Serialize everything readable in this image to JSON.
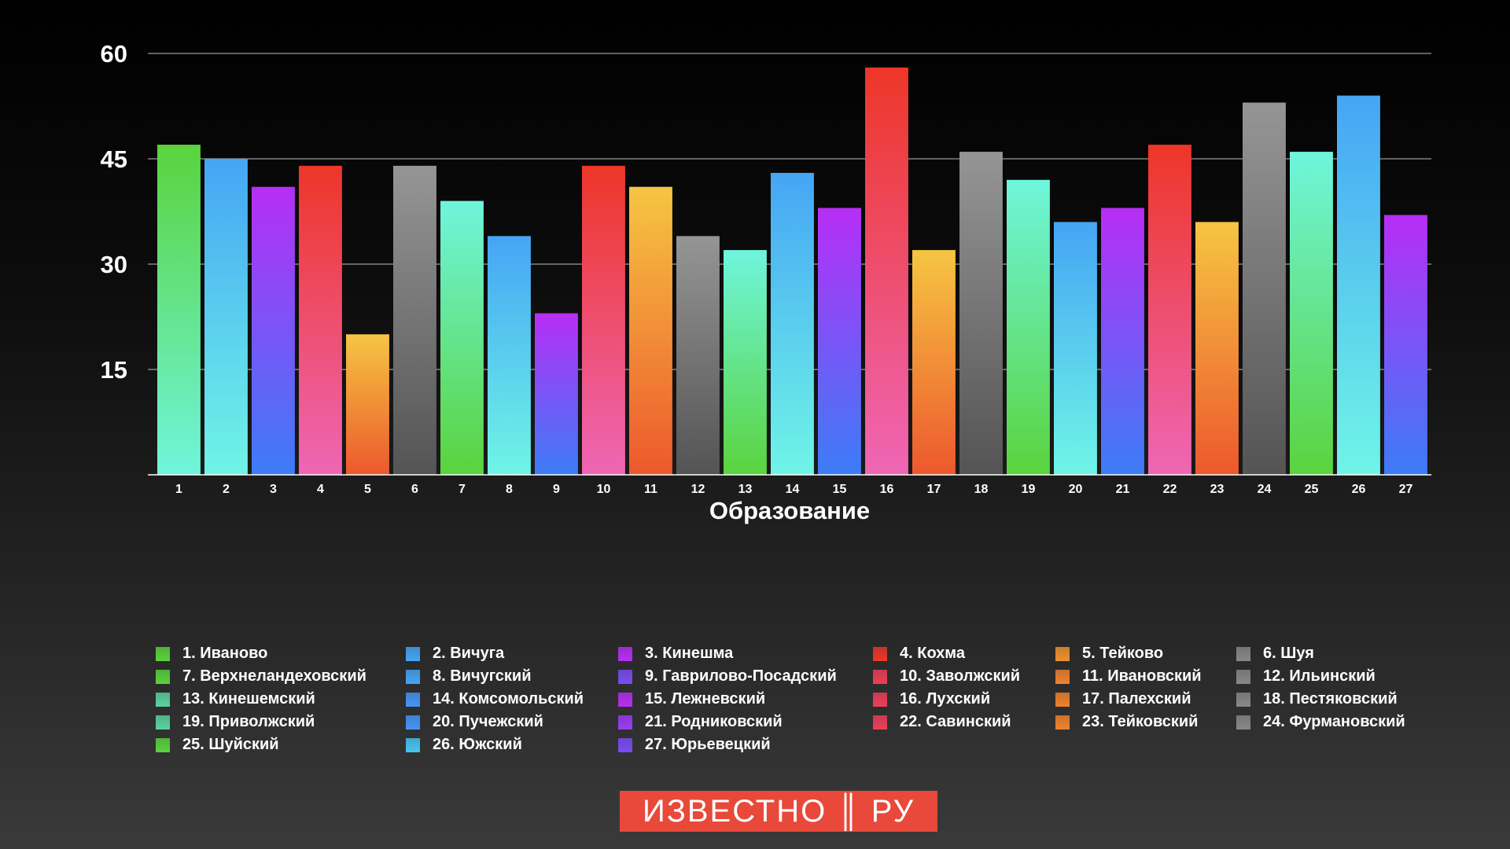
{
  "chart_data": {
    "type": "bar",
    "title": "",
    "xlabel": "Образование",
    "ylabel": "",
    "ylim": [
      0,
      60
    ],
    "yticks": [
      15,
      30,
      45,
      60
    ],
    "grid": true,
    "legend_position": "bottom",
    "categories": [
      "1",
      "2",
      "3",
      "4",
      "5",
      "6",
      "7",
      "8",
      "9",
      "10",
      "11",
      "12",
      "13",
      "14",
      "15",
      "16",
      "17",
      "18",
      "19",
      "20",
      "21",
      "22",
      "23",
      "24",
      "25",
      "26",
      "27"
    ],
    "values": [
      47,
      45,
      41,
      44,
      20,
      44,
      39,
      34,
      23,
      44,
      41,
      34,
      32,
      43,
      38,
      58,
      32,
      46,
      42,
      36,
      38,
      47,
      36,
      53,
      46,
      54,
      37
    ],
    "bar_colors": [
      [
        "#6ff5dc",
        "#5ad33d"
      ],
      [
        "#6ff5e6",
        "#45a5f5"
      ],
      [
        "#3c7cf7",
        "#b72ef5"
      ],
      [
        "#ef66b5",
        "#ed3628"
      ],
      [
        "#ed582d",
        "#f6c542"
      ],
      [
        "#545454",
        "#959595"
      ],
      [
        "#5ad33d",
        "#6ff5dc"
      ],
      [
        "#6ff5e6",
        "#45a5f5"
      ],
      [
        "#3c7cf7",
        "#b72ef5"
      ],
      [
        "#ef66b5",
        "#ed3628"
      ],
      [
        "#ed582d",
        "#f6c542"
      ],
      [
        "#545454",
        "#959595"
      ],
      [
        "#5ad33d",
        "#6ff5dc"
      ],
      [
        "#6ff5e6",
        "#45a5f5"
      ],
      [
        "#3c7cf7",
        "#b72ef5"
      ],
      [
        "#ef66b5",
        "#ed3628"
      ],
      [
        "#ed582d",
        "#f6c542"
      ],
      [
        "#545454",
        "#959595"
      ],
      [
        "#5ad33d",
        "#6ff5dc"
      ],
      [
        "#6ff5e6",
        "#45a5f5"
      ],
      [
        "#3c7cf7",
        "#b72ef5"
      ],
      [
        "#ef66b5",
        "#ed3628"
      ],
      [
        "#ed582d",
        "#f6c542"
      ],
      [
        "#545454",
        "#959595"
      ],
      [
        "#5ad33d",
        "#6ff5dc"
      ],
      [
        "#6ff5e6",
        "#45a5f5"
      ],
      [
        "#3c7cf7",
        "#b72ef5"
      ]
    ],
    "legend": [
      {
        "label": "1. Иваново",
        "color": "#5ad33d"
      },
      {
        "label": "2. Вичуга",
        "color": "#45a5f5"
      },
      {
        "label": "3. Кинешма",
        "color": "#b72ef5"
      },
      {
        "label": "4. Кохма",
        "color": "#ed3628"
      },
      {
        "label": "5. Тейково",
        "color": "#f0902e"
      },
      {
        "label": "6. Шуя",
        "color": "#888888"
      },
      {
        "label": "7. Верхнеландеховский",
        "color": "#5ad33d"
      },
      {
        "label": "8. Вичугский",
        "color": "#45a5f5"
      },
      {
        "label": "9. Гаврилово-Посадский",
        "color": "#7a4cf5"
      },
      {
        "label": "10. Заволжский",
        "color": "#ed3f58"
      },
      {
        "label": "11. Ивановский",
        "color": "#f0822e"
      },
      {
        "label": "12. Ильинский",
        "color": "#888888"
      },
      {
        "label": "13. Кинешемский",
        "color": "#5ad3a0"
      },
      {
        "label": "14. Комсомольский",
        "color": "#4595f5"
      },
      {
        "label": "15. Лежневский",
        "color": "#b72ef5"
      },
      {
        "label": "16. Лухский",
        "color": "#ed3f58"
      },
      {
        "label": "17. Палехский",
        "color": "#f0822e"
      },
      {
        "label": "18. Пестяковский",
        "color": "#888888"
      },
      {
        "label": "19. Приволжский",
        "color": "#5ad3a0"
      },
      {
        "label": "20. Пучежский",
        "color": "#4595f5"
      },
      {
        "label": "21. Родниковский",
        "color": "#9a3cf5"
      },
      {
        "label": "22. Савинский",
        "color": "#ed3f58"
      },
      {
        "label": "23. Тейковский",
        "color": "#f0822e"
      },
      {
        "label": "24. Фурмановский",
        "color": "#888888"
      },
      {
        "label": "25. Шуйский",
        "color": "#5ad33d"
      },
      {
        "label": "26. Южский",
        "color": "#45c5f5"
      },
      {
        "label": "27. Юрьевецкий",
        "color": "#7a4cf5"
      }
    ]
  },
  "logo": {
    "text": "ИЗВЕСТНО ║ РУ",
    "color": "#e8493a"
  }
}
